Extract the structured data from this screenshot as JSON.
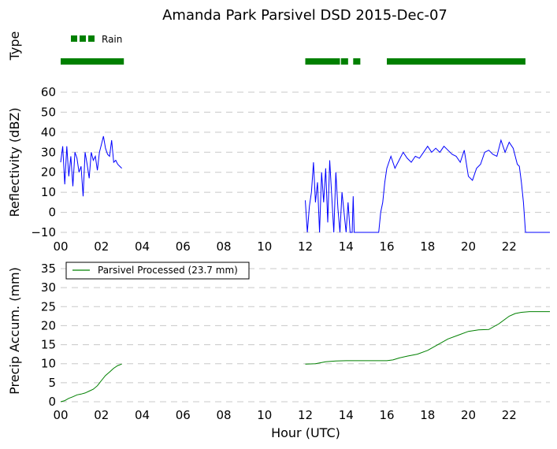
{
  "chart_data": [
    {
      "type": "timeline",
      "ylabel": "Type",
      "legend": [
        {
          "name": "Rain",
          "color": "#008000"
        }
      ],
      "xlim": [
        0,
        24
      ],
      "rain_intervals": [
        [
          0.0,
          3.1
        ],
        [
          12.0,
          13.7
        ],
        [
          13.75,
          14.1
        ],
        [
          14.35,
          14.7
        ],
        [
          16.0,
          22.8
        ]
      ]
    },
    {
      "type": "line",
      "title": "Amanda Park Parsivel DSD 2015-Dec-07",
      "ylabel": "Reflectivity (dBZ)",
      "xlim": [
        0,
        24
      ],
      "ylim": [
        -10,
        60
      ],
      "yticks": [
        -10,
        0,
        10,
        20,
        30,
        40,
        50,
        60
      ],
      "color": "#0000ff",
      "segments": [
        {
          "x": [
            0.0,
            0.1,
            0.2,
            0.3,
            0.4,
            0.5,
            0.6,
            0.7,
            0.8,
            0.9,
            1.0,
            1.1,
            1.2,
            1.3,
            1.4,
            1.5,
            1.6,
            1.7,
            1.8,
            1.9,
            2.0,
            2.1,
            2.2,
            2.3,
            2.4,
            2.5,
            2.6,
            2.7,
            2.8,
            2.9,
            3.0
          ],
          "y": [
            25,
            33,
            14,
            33,
            18,
            28,
            13,
            30,
            27,
            20,
            23,
            8,
            30,
            24,
            17,
            30,
            26,
            28,
            21,
            30,
            34,
            38,
            32,
            29,
            28,
            36,
            25,
            26,
            24,
            23,
            22
          ]
        },
        {
          "x": [
            12.0,
            12.1,
            12.2,
            12.3,
            12.4,
            12.5,
            12.6,
            12.7,
            12.8,
            12.9,
            13.0,
            13.1,
            13.2,
            13.3,
            13.4,
            13.5,
            13.6,
            13.7,
            13.8,
            13.9,
            14.0,
            14.1,
            14.2,
            14.3,
            14.35,
            14.4,
            14.5,
            14.6,
            14.8,
            15.0,
            15.2,
            15.4,
            15.6,
            15.7,
            15.8,
            15.9,
            16.0,
            16.1,
            16.2,
            16.4,
            16.6,
            16.8,
            17.0,
            17.2,
            17.4,
            17.6,
            17.8,
            18.0,
            18.2,
            18.4,
            18.6,
            18.8,
            19.0,
            19.2,
            19.4,
            19.6,
            19.8,
            20.0,
            20.2,
            20.4,
            20.6,
            20.8,
            21.0,
            21.2,
            21.4,
            21.6,
            21.8,
            22.0,
            22.2,
            22.4,
            22.5,
            22.6,
            22.7,
            22.8,
            23.0,
            23.5,
            24.0
          ],
          "y": [
            6,
            -10,
            3,
            10,
            25,
            5,
            15,
            -10,
            20,
            5,
            22,
            -5,
            26,
            8,
            -10,
            20,
            2,
            -10,
            10,
            0,
            -10,
            5,
            -10,
            -10,
            8,
            -10,
            -10,
            -10,
            -10,
            -10,
            -10,
            -10,
            -10,
            0,
            5,
            15,
            22,
            25,
            28,
            22,
            26,
            30,
            27,
            25,
            28,
            27,
            30,
            33,
            30,
            32,
            30,
            33,
            31,
            29,
            28,
            25,
            31,
            18,
            16,
            22,
            24,
            30,
            31,
            29,
            28,
            36,
            30,
            35,
            32,
            24,
            23,
            15,
            5,
            -10,
            -10,
            -10,
            -10
          ]
        }
      ]
    },
    {
      "type": "line",
      "ylabel": "Precip Accum. (mm)",
      "xlabel": "Hour (UTC)",
      "xlim": [
        0,
        24
      ],
      "ylim": [
        0,
        35
      ],
      "yticks": [
        0,
        5,
        10,
        15,
        20,
        25,
        30,
        35
      ],
      "xticks": [
        "00",
        "02",
        "04",
        "06",
        "08",
        "10",
        "12",
        "14",
        "16",
        "18",
        "20",
        "22"
      ],
      "xtick_values": [
        0,
        2,
        4,
        6,
        8,
        10,
        12,
        14,
        16,
        18,
        20,
        22
      ],
      "color": "#008000",
      "legend": [
        {
          "name": "Parsivel Processed (23.7 mm)",
          "color": "#008000"
        }
      ],
      "segments": [
        {
          "x": [
            0.0,
            0.2,
            0.4,
            0.6,
            0.8,
            1.0,
            1.2,
            1.4,
            1.6,
            1.8,
            2.0,
            2.2,
            2.4,
            2.6,
            2.8,
            3.0
          ],
          "y": [
            0,
            0.3,
            0.9,
            1.3,
            1.8,
            2.0,
            2.3,
            2.8,
            3.3,
            4.2,
            5.6,
            6.9,
            7.8,
            8.8,
            9.5,
            9.9
          ]
        },
        {
          "x": [
            12.0,
            12.5,
            13.0,
            13.5,
            14.0,
            14.5,
            15.0,
            15.5,
            16.0,
            16.3,
            16.6,
            17.0,
            17.5,
            18.0,
            18.5,
            19.0,
            19.5,
            20.0,
            20.5,
            21.0,
            21.5,
            22.0,
            22.3,
            22.6,
            23.0,
            23.5,
            24.0
          ],
          "y": [
            9.9,
            10.0,
            10.5,
            10.7,
            10.8,
            10.8,
            10.8,
            10.8,
            10.8,
            11.0,
            11.5,
            12.0,
            12.5,
            13.5,
            15.0,
            16.5,
            17.5,
            18.5,
            18.9,
            19.0,
            20.5,
            22.5,
            23.2,
            23.5,
            23.7,
            23.7,
            23.7
          ]
        }
      ]
    }
  ]
}
